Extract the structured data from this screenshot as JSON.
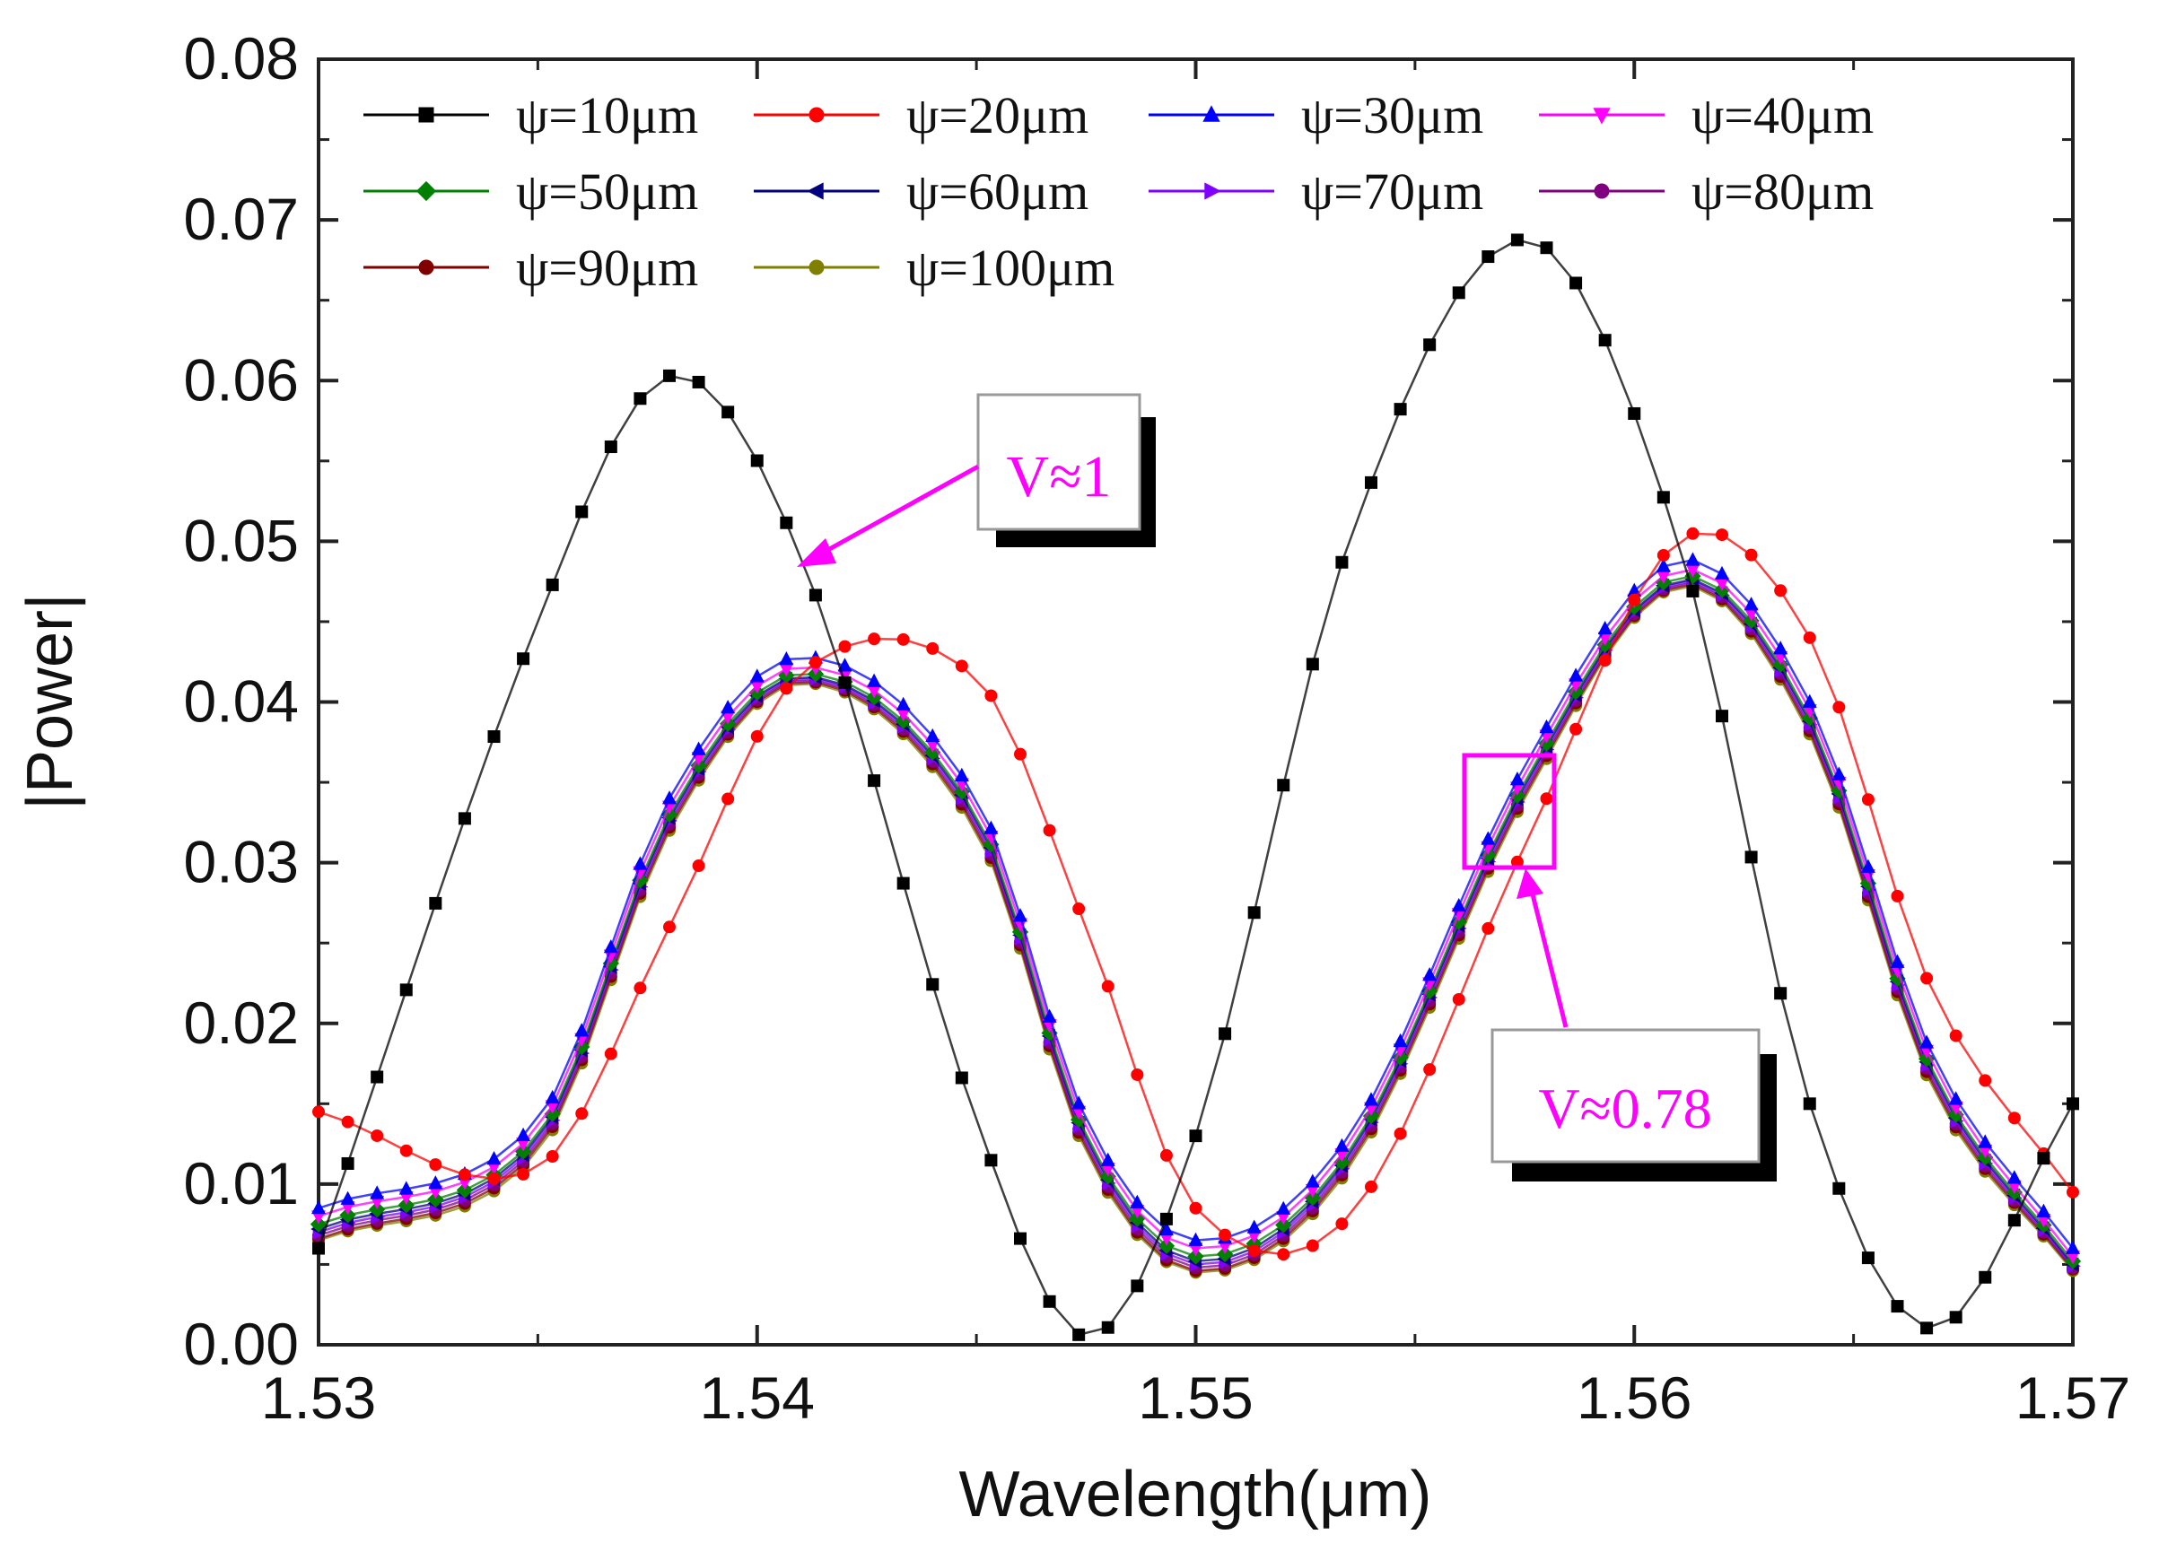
{
  "chart_data": {
    "type": "line",
    "xlabel": "Wavelength(μm)",
    "ylabel": "|Power|",
    "xlim": [
      1.53,
      1.57
    ],
    "ylim": [
      0.0,
      0.08
    ],
    "x_ticks": [
      "1.53",
      "1.54",
      "1.55",
      "1.56",
      "1.57"
    ],
    "y_ticks": [
      "0.00",
      "0.01",
      "0.02",
      "0.03",
      "0.04",
      "0.05",
      "0.06",
      "0.07",
      "0.08"
    ],
    "x_tick_values": [
      1.53,
      1.54,
      1.55,
      1.56,
      1.57
    ],
    "y_tick_values": [
      0.0,
      0.01,
      0.02,
      0.03,
      0.04,
      0.05,
      0.06,
      0.07,
      0.08
    ],
    "legend_position": "top",
    "x": [
      1.53,
      1.535,
      1.538,
      1.541,
      1.545,
      1.5475,
      1.55,
      1.5535,
      1.5575,
      1.561,
      1.564,
      1.5668,
      1.57
    ],
    "series": [
      {
        "name": "ψ=10μm",
        "color": "#000000",
        "marker": "square",
        "values": [
          0.006,
          0.045,
          0.0603,
          0.049,
          0.014,
          0.0005,
          0.013,
          0.05,
          0.0688,
          0.05,
          0.015,
          0.001,
          0.015
        ]
      },
      {
        "name": "ψ=20μm",
        "color": "#ff0000",
        "marker": "circle",
        "values": [
          0.0145,
          0.011,
          0.026,
          0.0418,
          0.0415,
          0.026,
          0.0085,
          0.008,
          0.031,
          0.05,
          0.044,
          0.022,
          0.0095
        ]
      },
      {
        "name": "ψ=30μm",
        "color": "#0000ff",
        "marker": "triangle-up",
        "values": [
          0.0085,
          0.014,
          0.034,
          0.0428,
          0.034,
          0.014,
          0.0065,
          0.013,
          0.036,
          0.0488,
          0.04,
          0.018,
          0.006
        ]
      },
      {
        "name": "ψ=40μm",
        "color": "#ff00ff",
        "marker": "triangle-down",
        "values": [
          0.008,
          0.0135,
          0.0335,
          0.0422,
          0.0335,
          0.0135,
          0.006,
          0.0125,
          0.0355,
          0.0482,
          0.0395,
          0.0175,
          0.0055
        ]
      },
      {
        "name": "ψ=50μm",
        "color": "#008000",
        "marker": "diamond",
        "values": [
          0.0075,
          0.013,
          0.033,
          0.0418,
          0.033,
          0.013,
          0.0055,
          0.012,
          0.035,
          0.0478,
          0.039,
          0.017,
          0.0052
        ]
      },
      {
        "name": "ψ=60μm",
        "color": "#000080",
        "marker": "triangle-left",
        "values": [
          0.0072,
          0.0128,
          0.0328,
          0.0416,
          0.0328,
          0.0128,
          0.0052,
          0.0118,
          0.0348,
          0.0476,
          0.0388,
          0.0168,
          0.005
        ]
      },
      {
        "name": "ψ=70μm",
        "color": "#8000ff",
        "marker": "triangle-right",
        "values": [
          0.007,
          0.0126,
          0.0326,
          0.0415,
          0.0326,
          0.0126,
          0.005,
          0.0116,
          0.0346,
          0.0475,
          0.0386,
          0.0166,
          0.0049
        ]
      },
      {
        "name": "ψ=80μm",
        "color": "#800080",
        "marker": "hexagon",
        "values": [
          0.0068,
          0.0124,
          0.0324,
          0.0414,
          0.0324,
          0.0124,
          0.0048,
          0.0114,
          0.0344,
          0.0474,
          0.0384,
          0.0164,
          0.0048
        ]
      },
      {
        "name": "ψ=90μm",
        "color": "#800000",
        "marker": "star",
        "values": [
          0.0066,
          0.0122,
          0.0322,
          0.0413,
          0.0322,
          0.0122,
          0.0046,
          0.0112,
          0.0342,
          0.0473,
          0.0382,
          0.0162,
          0.0047
        ]
      },
      {
        "name": "ψ=100μm",
        "color": "#808000",
        "marker": "pentagon",
        "values": [
          0.0065,
          0.012,
          0.032,
          0.0412,
          0.032,
          0.012,
          0.0045,
          0.011,
          0.034,
          0.0472,
          0.038,
          0.016,
          0.0046
        ]
      }
    ],
    "annotations": [
      {
        "text": "V≈1",
        "color": "#ff00ff",
        "points_to": [
          1.541,
          0.0488
        ]
      },
      {
        "text": "V≈0.78",
        "color": "#ff00ff",
        "points_to": [
          1.5575,
          0.0297
        ]
      }
    ]
  }
}
